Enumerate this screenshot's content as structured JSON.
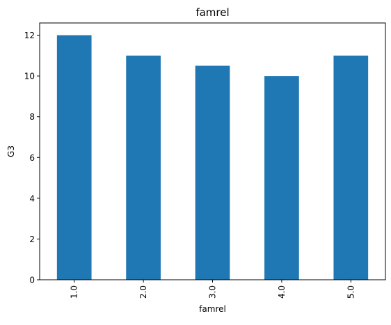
{
  "chart_data": {
    "type": "bar",
    "title": "famrel",
    "xlabel": "famrel",
    "ylabel": "G3",
    "categories": [
      "1.0",
      "2.0",
      "3.0",
      "4.0",
      "5.0"
    ],
    "values": [
      12,
      11,
      10.5,
      10,
      11
    ],
    "ylim": [
      0,
      12.6
    ],
    "yticks": [
      0,
      2,
      4,
      6,
      8,
      10,
      12
    ],
    "grid": false,
    "legend": "none",
    "bar_color": "#1f77b4",
    "xtick_rotation": "vertical"
  }
}
